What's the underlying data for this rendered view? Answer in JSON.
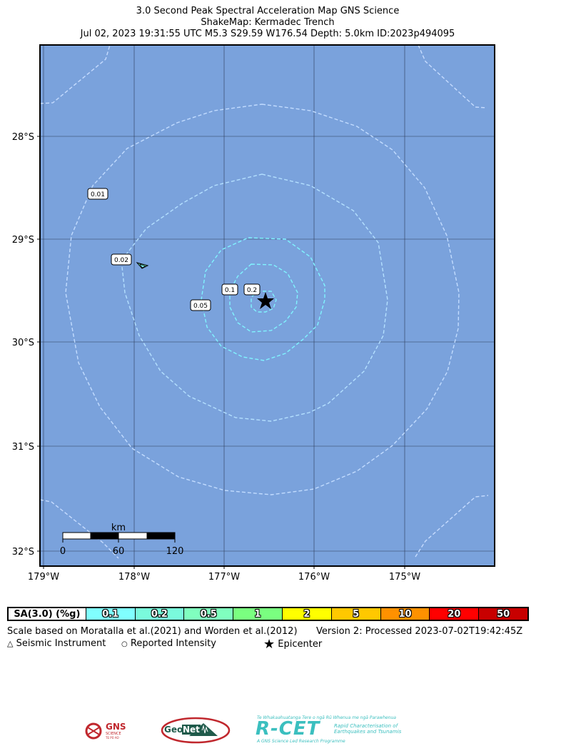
{
  "title": {
    "line1": "3.0 Second Peak Spectral Acceleration Map GNS Science",
    "line2": "ShakeMap: Kermadec Trench",
    "line3": "Jul 02, 2023 19:31:55 UTC M5.3 S29.59 W176.54 Depth: 5.0km ID:2023p494095"
  },
  "map": {
    "background_color": "#7aa2dc",
    "lat_labels": [
      "28°S",
      "29°S",
      "30°S",
      "31°S",
      "32°S"
    ],
    "lon_labels": [
      "179°W",
      "178°W",
      "177°W",
      "176°W",
      "175°W"
    ],
    "contour_labels": [
      "0.01",
      "0.02",
      "0.05",
      "0.1",
      "0.2"
    ],
    "epicenter": {
      "lat": -29.59,
      "lon": -176.54
    },
    "scalebar": {
      "unit": "km",
      "ticks": [
        "0",
        "60",
        "120"
      ]
    }
  },
  "legend": {
    "label": "SA(3.0) (%g)",
    "bins": [
      {
        "value": "0.1",
        "color": "#80ffff"
      },
      {
        "value": "0.2",
        "color": "#7afadc"
      },
      {
        "value": "0.5",
        "color": "#80ffbf"
      },
      {
        "value": "1",
        "color": "#7aff80"
      },
      {
        "value": "2",
        "color": "#ffff00"
      },
      {
        "value": "5",
        "color": "#ffc800"
      },
      {
        "value": "10",
        "color": "#ff9100"
      },
      {
        "value": "20",
        "color": "#ff0000"
      },
      {
        "value": "50",
        "color": "#c80000"
      }
    ]
  },
  "notes": {
    "scale_text": "Scale based on Moratalla et al.(2021) and Worden et al.(2012)",
    "version_text": "Version 2: Processed 2023-07-02T19:42:45Z",
    "seismic_instrument": "Seismic Instrument",
    "reported_intensity": "Reported Intensity",
    "epicenter": "Epicenter"
  },
  "logos": {
    "gns_line1": "GNS",
    "gns_line2": "SCIENCE",
    "gns_line3": "TE PŪ AO",
    "geonet_geo": "Geo",
    "geonet_net": "Net",
    "rcet_small": "Te Whakaahuatanga Tere o ngā Rū Whenua me ngā Parawhenua",
    "rcet_big": "R-CET",
    "rcet_side1": "Rapid Characterisation of",
    "rcet_side2": "Earthquakes and Tsunamis",
    "rcet_bottom": "A GNS Science Led Research Programme"
  }
}
